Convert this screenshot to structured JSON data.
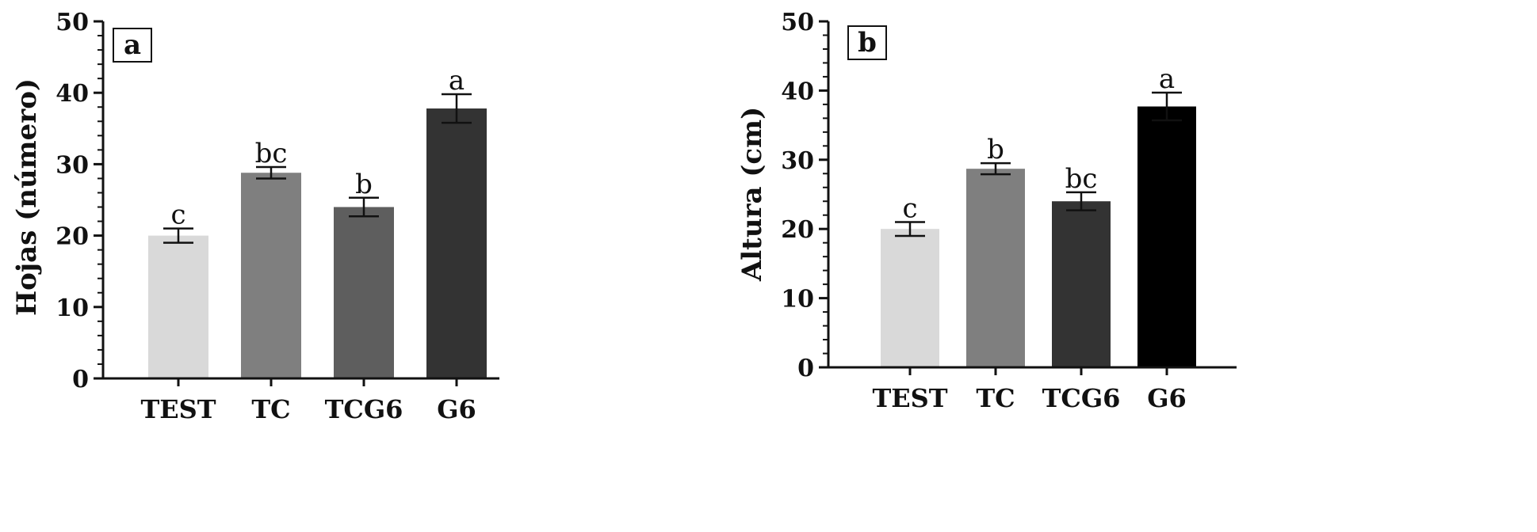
{
  "chart_data": [
    {
      "type": "bar",
      "panel_label": "a",
      "ylabel": "Hojas (número)",
      "xlabel": "",
      "ylim": [
        0,
        50
      ],
      "yticks": [
        0,
        10,
        20,
        30,
        40,
        50
      ],
      "categories": [
        "TEST",
        "TC",
        "TCG6",
        "G6"
      ],
      "values": [
        20,
        28.8,
        24,
        37.8
      ],
      "errors": [
        1,
        0.8,
        1.3,
        2
      ],
      "significance": [
        "c",
        "bc",
        "b",
        "a"
      ],
      "colors": [
        "#d9d9d9",
        "#7f7f7f",
        "#5e5e5e",
        "#333333"
      ]
    },
    {
      "type": "bar",
      "panel_label": "b",
      "ylabel": "Altura (cm)",
      "xlabel": "",
      "ylim": [
        0,
        50
      ],
      "yticks": [
        0,
        10,
        20,
        30,
        40,
        50
      ],
      "categories": [
        "TEST",
        "TC",
        "TCG6",
        "G6"
      ],
      "values": [
        20,
        28.7,
        24,
        37.7
      ],
      "errors": [
        1,
        0.8,
        1.3,
        2
      ],
      "significance": [
        "c",
        "b",
        "bc",
        "a"
      ],
      "colors": [
        "#d9d9d9",
        "#7f7f7f",
        "#333333",
        "#000000"
      ]
    }
  ]
}
